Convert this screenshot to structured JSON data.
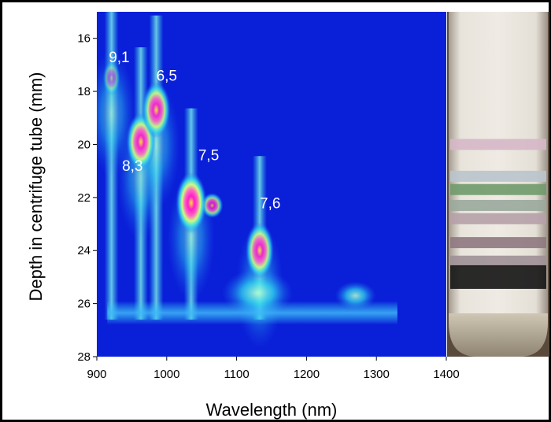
{
  "chart_data": {
    "type": "heatmap",
    "xlabel": "Wavelength (nm)",
    "ylabel": "Depth in centrifuge tube (mm)",
    "xlim": [
      900,
      1400
    ],
    "ylim": [
      28,
      15
    ],
    "x_ticks": [
      900,
      1000,
      1100,
      1200,
      1300,
      1400
    ],
    "y_ticks": [
      16,
      18,
      20,
      22,
      24,
      26,
      28
    ],
    "colormap": [
      "#0a1fd8",
      "#1f6cf0",
      "#2fd8f0",
      "#c8ff80",
      "#ff55c8",
      "#ff1ad0",
      "#ffe030"
    ],
    "background_color": "#0a1fd8",
    "grid": false,
    "peaks": [
      {
        "label": "9,1",
        "x": 921,
        "y": 17.5,
        "intensity": 0.2
      },
      {
        "label": "8,3",
        "x": 963,
        "y": 19.9,
        "intensity": 0.9
      },
      {
        "label": "6,5",
        "x": 985,
        "y": 18.7,
        "intensity": 0.85
      },
      {
        "label": "7,5",
        "x": 1035,
        "y": 22.2,
        "intensity": 1.0
      },
      {
        "label": "7,6",
        "x": 1133,
        "y": 24.0,
        "intensity": 0.85
      }
    ],
    "peak_label_positions": [
      {
        "label": "9,1",
        "x": 932,
        "y": 16.9
      },
      {
        "label": "6,5",
        "x": 1000,
        "y": 17.6
      },
      {
        "label": "8,3",
        "x": 951,
        "y": 21.0
      },
      {
        "label": "7,5",
        "x": 1060,
        "y": 20.6
      },
      {
        "label": "7,6",
        "x": 1148,
        "y": 22.4
      }
    ]
  },
  "photo": {
    "subject": "centrifuge-tube-photo",
    "bands": [
      {
        "color": "#d6b7c8",
        "depth": 20.0
      },
      {
        "color": "#b9c4cc",
        "depth": 21.2
      },
      {
        "color": "#6f9a6a",
        "depth": 21.7
      },
      {
        "color": "#9aa89c",
        "depth": 22.3
      },
      {
        "color": "#b6a0a8",
        "depth": 22.8
      },
      {
        "color": "#8e7880",
        "depth": 23.7
      },
      {
        "color": "#9f9096",
        "depth": 24.4
      },
      {
        "color": "#141414",
        "depth": 25.0
      }
    ]
  }
}
